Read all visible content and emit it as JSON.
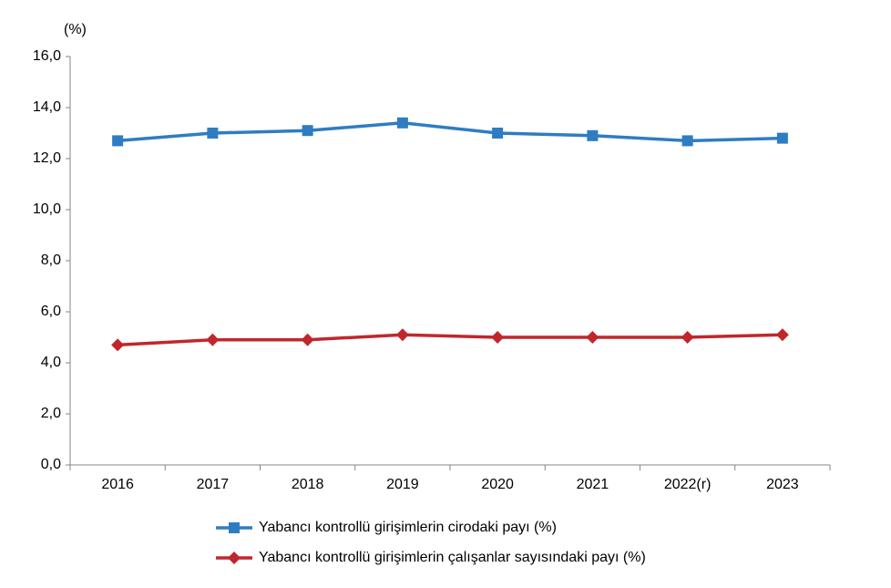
{
  "chart_data": {
    "type": "line",
    "y_unit": "(%)",
    "categories": [
      "2016",
      "2017",
      "2018",
      "2019",
      "2020",
      "2021",
      "2022(r)",
      "2023"
    ],
    "series": [
      {
        "name": "Yabancı kontrollü girişimlerin cirodaki payı (%)",
        "color": "#2e7dc2",
        "marker": "square",
        "values": [
          12.7,
          13.0,
          13.1,
          13.4,
          13.0,
          12.9,
          12.7,
          12.8
        ]
      },
      {
        "name": "Yabancı kontrollü girişimlerin çalışanlar sayısındaki payı (%)",
        "color": "#c0272d",
        "marker": "diamond",
        "values": [
          4.7,
          4.9,
          4.9,
          5.1,
          5.0,
          5.0,
          5.0,
          5.1
        ]
      }
    ],
    "ylim": [
      0,
      16
    ],
    "yticks": [
      {
        "value": 0,
        "label": "0,0"
      },
      {
        "value": 2,
        "label": "2,0"
      },
      {
        "value": 4,
        "label": "4,0"
      },
      {
        "value": 6,
        "label": "6,0"
      },
      {
        "value": 8,
        "label": "8,0"
      },
      {
        "value": 10,
        "label": "10,0"
      },
      {
        "value": 12,
        "label": "12,0"
      },
      {
        "value": 14,
        "label": "14,0"
      },
      {
        "value": 16,
        "label": "16,0"
      }
    ],
    "grid": false,
    "legend": "bottom"
  }
}
